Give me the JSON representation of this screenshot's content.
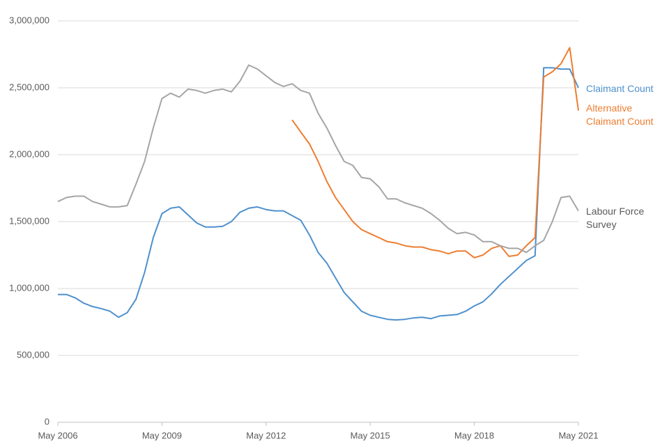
{
  "chart_data": {
    "type": "line",
    "x": [
      "2006-05",
      "2006-08",
      "2006-11",
      "2007-02",
      "2007-05",
      "2007-08",
      "2007-11",
      "2008-02",
      "2008-05",
      "2008-08",
      "2008-11",
      "2009-02",
      "2009-05",
      "2009-08",
      "2009-11",
      "2010-02",
      "2010-05",
      "2010-08",
      "2010-11",
      "2011-02",
      "2011-05",
      "2011-08",
      "2011-11",
      "2012-02",
      "2012-05",
      "2012-08",
      "2012-11",
      "2013-02",
      "2013-05",
      "2013-08",
      "2013-11",
      "2014-02",
      "2014-05",
      "2014-08",
      "2014-11",
      "2015-02",
      "2015-05",
      "2015-08",
      "2015-11",
      "2016-02",
      "2016-05",
      "2016-08",
      "2016-11",
      "2017-02",
      "2017-05",
      "2017-08",
      "2017-11",
      "2018-02",
      "2018-05",
      "2018-08",
      "2018-11",
      "2019-02",
      "2019-05",
      "2019-08",
      "2019-11",
      "2020-02",
      "2020-05",
      "2020-08",
      "2020-11",
      "2021-02",
      "2021-05"
    ],
    "series": [
      {
        "name": "Claimant Count",
        "color": "#4e90cd",
        "values": [
          955000,
          955000,
          930000,
          890000,
          865000,
          850000,
          830000,
          785000,
          820000,
          920000,
          1120000,
          1380000,
          1560000,
          1600000,
          1610000,
          1550000,
          1490000,
          1460000,
          1460000,
          1465000,
          1500000,
          1570000,
          1600000,
          1610000,
          1590000,
          1580000,
          1580000,
          1545000,
          1510000,
          1400000,
          1270000,
          1190000,
          1080000,
          970000,
          900000,
          830000,
          800000,
          785000,
          770000,
          765000,
          770000,
          780000,
          785000,
          775000,
          795000,
          800000,
          805000,
          830000,
          870000,
          900000,
          960000,
          1030000,
          1090000,
          1150000,
          1210000,
          1245000,
          2650000,
          2650000,
          2640000,
          2640000,
          2500000
        ]
      },
      {
        "name": "Alternative Claimant Count",
        "color": "#ed7d31",
        "values": [
          null,
          null,
          null,
          null,
          null,
          null,
          null,
          null,
          null,
          null,
          null,
          null,
          null,
          null,
          null,
          null,
          null,
          null,
          null,
          null,
          null,
          null,
          null,
          null,
          null,
          null,
          null,
          2260000,
          2170000,
          2080000,
          1950000,
          1800000,
          1680000,
          1590000,
          1500000,
          1440000,
          1410000,
          1380000,
          1350000,
          1340000,
          1320000,
          1310000,
          1310000,
          1290000,
          1280000,
          1260000,
          1280000,
          1280000,
          1230000,
          1250000,
          1300000,
          1320000,
          1240000,
          1250000,
          1320000,
          1380000,
          2580000,
          2620000,
          2680000,
          2800000,
          2330000
        ]
      },
      {
        "name": "Labour Force Survey",
        "color": "#a5a5a5",
        "values": [
          1650000,
          1680000,
          1690000,
          1690000,
          1650000,
          1630000,
          1610000,
          1610000,
          1620000,
          1780000,
          1950000,
          2200000,
          2420000,
          2460000,
          2430000,
          2490000,
          2480000,
          2460000,
          2480000,
          2490000,
          2470000,
          2550000,
          2670000,
          2640000,
          2590000,
          2540000,
          2510000,
          2530000,
          2480000,
          2460000,
          2310000,
          2200000,
          2070000,
          1950000,
          1920000,
          1830000,
          1820000,
          1760000,
          1670000,
          1670000,
          1640000,
          1620000,
          1600000,
          1560000,
          1510000,
          1450000,
          1410000,
          1420000,
          1400000,
          1350000,
          1350000,
          1320000,
          1300000,
          1300000,
          1270000,
          1320000,
          1360000,
          1500000,
          1680000,
          1690000,
          1580000
        ]
      }
    ],
    "xlim": [
      "2006-05",
      "2021-05"
    ],
    "xticks": [
      {
        "value": "2006-05",
        "label": "May 2006"
      },
      {
        "value": "2009-05",
        "label": "May 2009"
      },
      {
        "value": "2012-05",
        "label": "May 2012"
      },
      {
        "value": "2015-05",
        "label": "May 2015"
      },
      {
        "value": "2018-05",
        "label": "May 2018"
      },
      {
        "value": "2021-05",
        "label": "May 2021"
      }
    ],
    "ylim": [
      0,
      3000000
    ],
    "yticks": [
      0,
      {
        "value": 500000,
        "label": "500,000"
      },
      {
        "value": 1000000,
        "label": "1,000,000"
      },
      {
        "value": 1500000,
        "label": "1,500,000"
      },
      {
        "value": 2000000,
        "label": "2,000,000"
      },
      {
        "value": 2500000,
        "label": "2,500,000"
      },
      {
        "value": 3000000,
        "label": "3,000,000"
      }
    ],
    "grid": true
  }
}
